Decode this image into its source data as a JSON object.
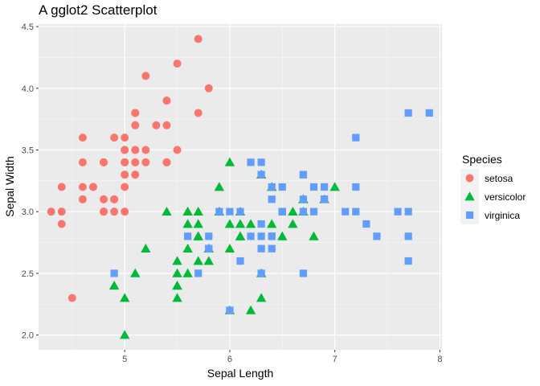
{
  "chart_data": {
    "type": "scatter",
    "title": "A gglot2 Scatterplot",
    "xlabel": "Sepal Length",
    "ylabel": "Sepal Width",
    "xlim": [
      4.18,
      8.02
    ],
    "ylim": [
      1.88,
      4.52
    ],
    "x_ticks": [
      5,
      6,
      7,
      8
    ],
    "y_ticks": [
      2.0,
      2.5,
      3.0,
      3.5,
      4.0,
      4.5
    ],
    "x_tick_labels": [
      "5",
      "6",
      "7",
      "8"
    ],
    "y_tick_labels": [
      "2.0",
      "2.5",
      "3.0",
      "3.5",
      "4.0",
      "4.5"
    ],
    "grid": true,
    "legend": {
      "title": "Species",
      "position": "right"
    },
    "series": [
      {
        "name": "setosa",
        "color": "#F8766D",
        "shape": "circle",
        "points": [
          [
            5.1,
            3.5
          ],
          [
            4.9,
            3.0
          ],
          [
            4.7,
            3.2
          ],
          [
            4.6,
            3.1
          ],
          [
            5.0,
            3.6
          ],
          [
            5.4,
            3.9
          ],
          [
            4.6,
            3.4
          ],
          [
            5.0,
            3.4
          ],
          [
            4.4,
            2.9
          ],
          [
            4.9,
            3.1
          ],
          [
            5.4,
            3.7
          ],
          [
            4.8,
            3.4
          ],
          [
            4.8,
            3.0
          ],
          [
            4.3,
            3.0
          ],
          [
            5.8,
            4.0
          ],
          [
            5.7,
            4.4
          ],
          [
            5.4,
            3.9
          ],
          [
            5.1,
            3.5
          ],
          [
            5.7,
            3.8
          ],
          [
            5.1,
            3.8
          ],
          [
            5.4,
            3.4
          ],
          [
            5.1,
            3.7
          ],
          [
            4.6,
            3.6
          ],
          [
            5.1,
            3.3
          ],
          [
            4.8,
            3.4
          ],
          [
            5.0,
            3.0
          ],
          [
            5.0,
            3.4
          ],
          [
            5.2,
            3.5
          ],
          [
            5.2,
            3.4
          ],
          [
            4.7,
            3.2
          ],
          [
            4.8,
            3.1
          ],
          [
            5.4,
            3.4
          ],
          [
            5.2,
            4.1
          ],
          [
            5.5,
            4.2
          ],
          [
            4.9,
            3.1
          ],
          [
            5.0,
            3.2
          ],
          [
            5.5,
            3.5
          ],
          [
            4.9,
            3.6
          ],
          [
            4.4,
            3.0
          ],
          [
            5.1,
            3.4
          ],
          [
            5.0,
            3.5
          ],
          [
            4.5,
            2.3
          ],
          [
            4.4,
            3.2
          ],
          [
            5.0,
            3.5
          ],
          [
            5.1,
            3.8
          ],
          [
            4.8,
            3.0
          ],
          [
            5.1,
            3.8
          ],
          [
            4.6,
            3.2
          ],
          [
            5.3,
            3.7
          ],
          [
            5.0,
            3.3
          ]
        ]
      },
      {
        "name": "versicolor",
        "color": "#00BA38",
        "shape": "triangle",
        "points": [
          [
            7.0,
            3.2
          ],
          [
            6.4,
            3.2
          ],
          [
            6.9,
            3.1
          ],
          [
            5.5,
            2.3
          ],
          [
            6.5,
            2.8
          ],
          [
            5.7,
            2.8
          ],
          [
            6.3,
            3.3
          ],
          [
            4.9,
            2.4
          ],
          [
            6.6,
            2.9
          ],
          [
            5.2,
            2.7
          ],
          [
            5.0,
            2.0
          ],
          [
            5.9,
            3.0
          ],
          [
            6.0,
            2.2
          ],
          [
            6.1,
            2.9
          ],
          [
            5.6,
            2.9
          ],
          [
            6.7,
            3.1
          ],
          [
            5.6,
            3.0
          ],
          [
            5.8,
            2.7
          ],
          [
            6.2,
            2.2
          ],
          [
            5.6,
            2.5
          ],
          [
            5.9,
            3.2
          ],
          [
            6.1,
            2.8
          ],
          [
            6.3,
            2.5
          ],
          [
            6.1,
            2.8
          ],
          [
            6.4,
            2.9
          ],
          [
            6.6,
            3.0
          ],
          [
            6.8,
            2.8
          ],
          [
            6.7,
            3.0
          ],
          [
            6.0,
            2.9
          ],
          [
            5.7,
            2.6
          ],
          [
            5.5,
            2.4
          ],
          [
            5.5,
            2.4
          ],
          [
            5.8,
            2.7
          ],
          [
            6.0,
            2.7
          ],
          [
            5.4,
            3.0
          ],
          [
            6.0,
            3.4
          ],
          [
            6.7,
            3.1
          ],
          [
            6.3,
            2.3
          ],
          [
            5.6,
            3.0
          ],
          [
            5.5,
            2.5
          ],
          [
            5.5,
            2.6
          ],
          [
            6.1,
            3.0
          ],
          [
            5.8,
            2.6
          ],
          [
            5.0,
            2.3
          ],
          [
            5.6,
            2.7
          ],
          [
            5.7,
            3.0
          ],
          [
            5.7,
            2.9
          ],
          [
            6.2,
            2.9
          ],
          [
            5.1,
            2.5
          ],
          [
            5.7,
            2.8
          ]
        ]
      },
      {
        "name": "virginica",
        "color": "#619CFF",
        "shape": "square",
        "points": [
          [
            6.3,
            3.3
          ],
          [
            5.8,
            2.7
          ],
          [
            7.1,
            3.0
          ],
          [
            6.3,
            2.9
          ],
          [
            6.5,
            3.0
          ],
          [
            7.6,
            3.0
          ],
          [
            4.9,
            2.5
          ],
          [
            7.3,
            2.9
          ],
          [
            6.7,
            2.5
          ],
          [
            7.2,
            3.6
          ],
          [
            6.5,
            3.2
          ],
          [
            6.4,
            2.7
          ],
          [
            6.8,
            3.0
          ],
          [
            5.7,
            2.5
          ],
          [
            5.8,
            2.8
          ],
          [
            6.4,
            3.2
          ],
          [
            6.5,
            3.0
          ],
          [
            7.7,
            3.8
          ],
          [
            7.7,
            2.6
          ],
          [
            6.0,
            2.2
          ],
          [
            6.9,
            3.2
          ],
          [
            5.6,
            2.8
          ],
          [
            7.7,
            2.8
          ],
          [
            6.3,
            2.7
          ],
          [
            6.7,
            3.3
          ],
          [
            7.2,
            3.2
          ],
          [
            6.2,
            2.8
          ],
          [
            6.1,
            3.0
          ],
          [
            6.4,
            2.8
          ],
          [
            7.2,
            3.0
          ],
          [
            7.4,
            2.8
          ],
          [
            7.9,
            3.8
          ],
          [
            6.4,
            2.8
          ],
          [
            6.3,
            2.8
          ],
          [
            6.1,
            2.6
          ],
          [
            7.7,
            3.0
          ],
          [
            6.3,
            3.4
          ],
          [
            6.4,
            3.1
          ],
          [
            6.0,
            3.0
          ],
          [
            6.9,
            3.1
          ],
          [
            6.7,
            3.1
          ],
          [
            6.9,
            3.1
          ],
          [
            5.8,
            2.7
          ],
          [
            6.8,
            3.2
          ],
          [
            6.7,
            3.3
          ],
          [
            6.7,
            3.0
          ],
          [
            6.3,
            2.5
          ],
          [
            6.5,
            3.0
          ],
          [
            6.2,
            3.4
          ],
          [
            5.9,
            3.0
          ]
        ]
      }
    ]
  }
}
